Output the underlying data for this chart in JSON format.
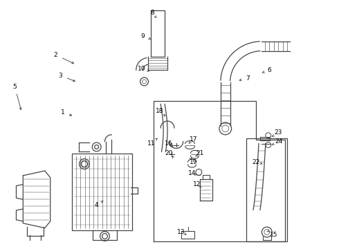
{
  "bg_color": "#ffffff",
  "line_color": "#444444",
  "figsize": [
    4.9,
    3.6
  ],
  "dpi": 100,
  "labels_pos": {
    "1": [
      0.88,
      1.98,
      1.05,
      1.92
    ],
    "2": [
      0.78,
      2.82,
      1.08,
      2.68
    ],
    "3": [
      0.85,
      2.52,
      1.1,
      2.42
    ],
    "4": [
      1.38,
      0.62,
      1.48,
      0.68
    ],
    "5": [
      0.18,
      2.35,
      0.28,
      1.98
    ],
    "6": [
      3.92,
      2.6,
      3.78,
      2.55
    ],
    "7": [
      3.6,
      2.48,
      3.44,
      2.44
    ],
    "8": [
      2.2,
      3.44,
      2.26,
      3.36
    ],
    "9": [
      2.06,
      3.1,
      2.18,
      3.05
    ],
    "10": [
      2.04,
      2.62,
      2.16,
      2.58
    ],
    "11": [
      2.18,
      1.52,
      2.3,
      1.62
    ],
    "12": [
      2.85,
      0.92,
      2.92,
      0.88
    ],
    "13": [
      2.62,
      0.22,
      2.7,
      0.18
    ],
    "14": [
      2.78,
      1.08,
      2.86,
      1.06
    ],
    "15": [
      3.98,
      0.18,
      3.92,
      0.22
    ],
    "16": [
      2.44,
      1.52,
      2.5,
      1.46
    ],
    "17": [
      2.8,
      1.58,
      2.73,
      1.52
    ],
    "18": [
      2.3,
      2.0,
      2.36,
      1.95
    ],
    "19": [
      2.8,
      1.25,
      2.78,
      1.28
    ],
    "20": [
      2.44,
      1.38,
      2.48,
      1.34
    ],
    "21": [
      2.9,
      1.38,
      2.83,
      1.33
    ],
    "22": [
      3.72,
      1.25,
      3.82,
      1.22
    ],
    "23": [
      4.05,
      1.68,
      3.95,
      1.62
    ],
    "24": [
      4.05,
      1.55,
      3.95,
      1.5
    ]
  }
}
